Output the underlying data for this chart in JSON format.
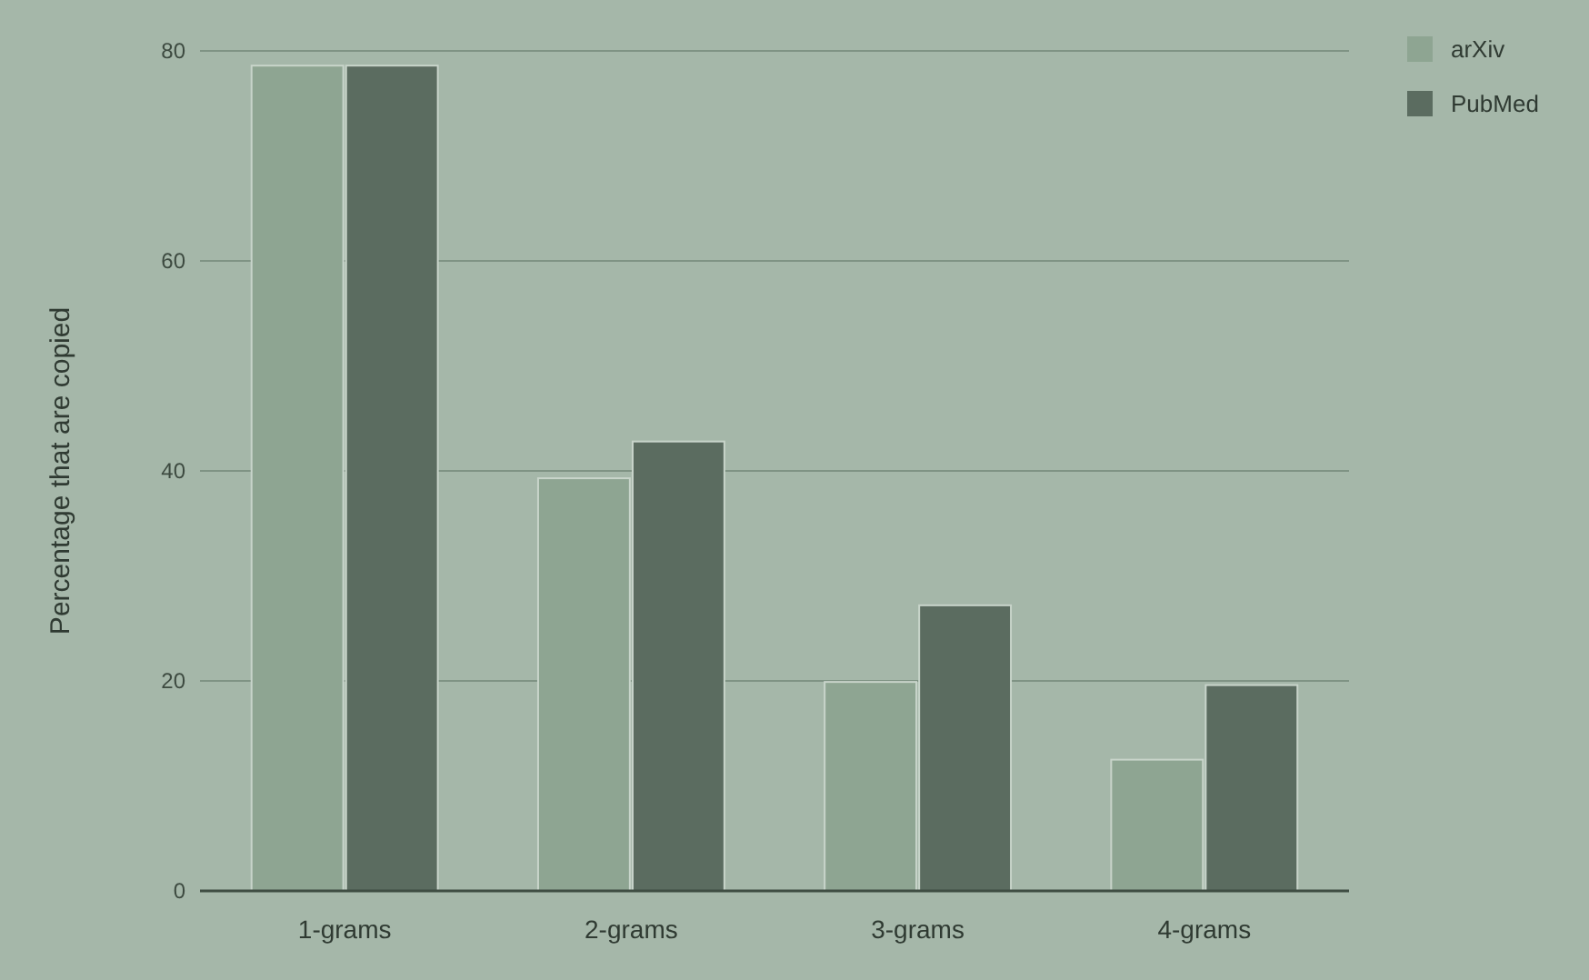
{
  "chart_data": {
    "type": "bar",
    "ylabel": "Percentage that are copied",
    "categories": [
      "1-grams",
      "2-grams",
      "3-grams",
      "4-grams"
    ],
    "series": [
      {
        "name": "arXiv",
        "color": "#8ea592",
        "values": [
          78.6,
          39.3,
          19.9,
          12.5
        ]
      },
      {
        "name": "PubMed",
        "color": "#5b6c60",
        "values": [
          78.6,
          42.8,
          27.2,
          19.6
        ]
      }
    ],
    "ylim": [
      0,
      80
    ],
    "yticks": [
      0,
      20,
      40,
      60,
      80
    ],
    "grid": "y",
    "legend": "top right"
  }
}
